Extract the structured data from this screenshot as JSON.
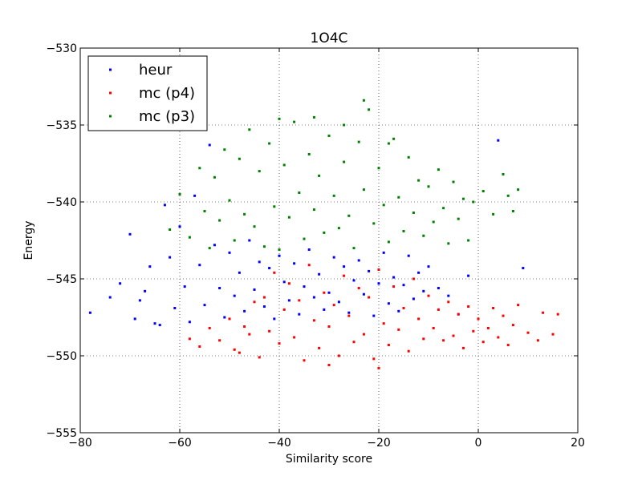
{
  "chart_data": {
    "type": "scatter",
    "title": "1O4C",
    "xlabel": "Similarity score",
    "ylabel": "Energy",
    "xlim": [
      -80,
      20
    ],
    "ylim": [
      -555,
      -530
    ],
    "xticks": [
      -80,
      -60,
      -40,
      -20,
      0,
      20
    ],
    "yticks": [
      -555,
      -550,
      -545,
      -540,
      -535,
      -530
    ],
    "xtick_labels": [
      "−80",
      "−60",
      "−40",
      "−20",
      "0",
      "20"
    ],
    "ytick_labels": [
      "−555",
      "−550",
      "−545",
      "−540",
      "−535",
      "−530"
    ],
    "grid": true,
    "legend_position": "top-left",
    "series": [
      {
        "name": "heur",
        "color": "#0000ff",
        "points": [
          [
            -78,
            -547.2
          ],
          [
            -72,
            -545.3
          ],
          [
            -70,
            -542.1
          ],
          [
            -68,
            -546.4
          ],
          [
            -66,
            -544.2
          ],
          [
            -64,
            -548.0
          ],
          [
            -63,
            -540.2
          ],
          [
            -62,
            -543.6
          ],
          [
            -61,
            -546.9
          ],
          [
            -60,
            -541.6
          ],
          [
            -59,
            -545.5
          ],
          [
            -58,
            -547.8
          ],
          [
            -57,
            -539.6
          ],
          [
            -56,
            -544.1
          ],
          [
            -55,
            -546.7
          ],
          [
            -54,
            -536.3
          ],
          [
            -53,
            -542.8
          ],
          [
            -52,
            -545.6
          ],
          [
            -51,
            -547.5
          ],
          [
            -50,
            -543.3
          ],
          [
            -49,
            -546.1
          ],
          [
            -48,
            -544.6
          ],
          [
            -47,
            -547.1
          ],
          [
            -46,
            -542.5
          ],
          [
            -45,
            -545.7
          ],
          [
            -44,
            -543.9
          ],
          [
            -43,
            -546.8
          ],
          [
            -42,
            -544.3
          ],
          [
            -41,
            -547.6
          ],
          [
            -40,
            -543.5
          ],
          [
            -39,
            -545.2
          ],
          [
            -38,
            -546.4
          ],
          [
            -37,
            -544.0
          ],
          [
            -36,
            -547.3
          ],
          [
            -35,
            -545.5
          ],
          [
            -34,
            -543.1
          ],
          [
            -33,
            -546.2
          ],
          [
            -32,
            -544.7
          ],
          [
            -31,
            -547.0
          ],
          [
            -30,
            -545.9
          ],
          [
            -29,
            -543.6
          ],
          [
            -28,
            -546.5
          ],
          [
            -27,
            -544.2
          ],
          [
            -26,
            -547.2
          ],
          [
            -25,
            -545.1
          ],
          [
            -24,
            -543.8
          ],
          [
            -23,
            -546.0
          ],
          [
            -22,
            -544.5
          ],
          [
            -21,
            -547.4
          ],
          [
            -20,
            -545.3
          ],
          [
            -19,
            -543.3
          ],
          [
            -18,
            -546.6
          ],
          [
            -17,
            -544.9
          ],
          [
            -16,
            -547.1
          ],
          [
            -15,
            -545.4
          ],
          [
            -14,
            -543.5
          ],
          [
            -13,
            -546.3
          ],
          [
            -12,
            -544.6
          ],
          [
            -11,
            -545.8
          ],
          [
            -10,
            -544.2
          ],
          [
            -8,
            -545.6
          ],
          [
            -6,
            -546.1
          ],
          [
            -4,
            -547.3
          ],
          [
            -2,
            -544.8
          ],
          [
            4,
            -536.0
          ],
          [
            9,
            -544.3
          ],
          [
            -65,
            -547.9
          ],
          [
            -67,
            -545.8
          ],
          [
            -69,
            -547.6
          ],
          [
            -74,
            -546.2
          ]
        ]
      },
      {
        "name": "mc (p4)",
        "color": "#ff0000",
        "points": [
          [
            -58,
            -548.9
          ],
          [
            -56,
            -549.4
          ],
          [
            -54,
            -548.2
          ],
          [
            -52,
            -549.0
          ],
          [
            -50,
            -547.6
          ],
          [
            -48,
            -549.8
          ],
          [
            -46,
            -548.6
          ],
          [
            -44,
            -550.1
          ],
          [
            -43,
            -546.2
          ],
          [
            -42,
            -548.4
          ],
          [
            -41,
            -544.6
          ],
          [
            -40,
            -549.2
          ],
          [
            -39,
            -547.0
          ],
          [
            -38,
            -545.3
          ],
          [
            -37,
            -548.8
          ],
          [
            -36,
            -546.4
          ],
          [
            -35,
            -550.3
          ],
          [
            -34,
            -544.1
          ],
          [
            -33,
            -547.7
          ],
          [
            -32,
            -549.5
          ],
          [
            -31,
            -545.9
          ],
          [
            -30,
            -548.1
          ],
          [
            -29,
            -546.7
          ],
          [
            -28,
            -550.0
          ],
          [
            -27,
            -544.8
          ],
          [
            -26,
            -547.4
          ],
          [
            -25,
            -549.1
          ],
          [
            -24,
            -545.6
          ],
          [
            -23,
            -548.6
          ],
          [
            -22,
            -546.2
          ],
          [
            -21,
            -550.2
          ],
          [
            -20,
            -544.4
          ],
          [
            -19,
            -547.9
          ],
          [
            -18,
            -549.3
          ],
          [
            -17,
            -545.5
          ],
          [
            -16,
            -548.3
          ],
          [
            -15,
            -546.9
          ],
          [
            -14,
            -549.7
          ],
          [
            -13,
            -545.0
          ],
          [
            -12,
            -547.6
          ],
          [
            -11,
            -548.9
          ],
          [
            -10,
            -546.1
          ],
          [
            -9,
            -548.2
          ],
          [
            -8,
            -547.0
          ],
          [
            -7,
            -549.0
          ],
          [
            -6,
            -546.5
          ],
          [
            -5,
            -548.7
          ],
          [
            -4,
            -547.3
          ],
          [
            -3,
            -549.5
          ],
          [
            -2,
            -546.8
          ],
          [
            -1,
            -548.4
          ],
          [
            0,
            -547.6
          ],
          [
            1,
            -549.1
          ],
          [
            2,
            -548.2
          ],
          [
            3,
            -546.9
          ],
          [
            4,
            -548.8
          ],
          [
            5,
            -547.4
          ],
          [
            6,
            -549.3
          ],
          [
            7,
            -548.0
          ],
          [
            8,
            -546.7
          ],
          [
            10,
            -548.5
          ],
          [
            12,
            -549.0
          ],
          [
            13,
            -547.2
          ],
          [
            15,
            -548.6
          ],
          [
            16,
            -547.3
          ],
          [
            -45,
            -546.5
          ],
          [
            -47,
            -548.1
          ],
          [
            -49,
            -549.6
          ],
          [
            -20,
            -550.8
          ],
          [
            -30,
            -550.6
          ]
        ]
      },
      {
        "name": "mc (p3)",
        "color": "#008000",
        "points": [
          [
            -62,
            -541.8
          ],
          [
            -60,
            -539.5
          ],
          [
            -58,
            -542.3
          ],
          [
            -56,
            -537.8
          ],
          [
            -55,
            -540.6
          ],
          [
            -54,
            -543.0
          ],
          [
            -53,
            -538.4
          ],
          [
            -52,
            -541.2
          ],
          [
            -51,
            -536.6
          ],
          [
            -50,
            -539.9
          ],
          [
            -49,
            -542.5
          ],
          [
            -48,
            -537.2
          ],
          [
            -47,
            -540.8
          ],
          [
            -46,
            -535.3
          ],
          [
            -45,
            -541.6
          ],
          [
            -44,
            -538.0
          ],
          [
            -43,
            -542.9
          ],
          [
            -42,
            -536.2
          ],
          [
            -41,
            -540.3
          ],
          [
            -40,
            -543.1
          ],
          [
            -39,
            -537.6
          ],
          [
            -38,
            -541.0
          ],
          [
            -37,
            -534.8
          ],
          [
            -36,
            -539.4
          ],
          [
            -35,
            -542.4
          ],
          [
            -34,
            -536.9
          ],
          [
            -33,
            -540.5
          ],
          [
            -32,
            -538.3
          ],
          [
            -31,
            -542.0
          ],
          [
            -30,
            -535.7
          ],
          [
            -29,
            -539.6
          ],
          [
            -28,
            -541.7
          ],
          [
            -27,
            -537.4
          ],
          [
            -26,
            -540.9
          ],
          [
            -25,
            -543.0
          ],
          [
            -24,
            -536.1
          ],
          [
            -23,
            -539.2
          ],
          [
            -22,
            -534.0
          ],
          [
            -21,
            -541.4
          ],
          [
            -20,
            -537.8
          ],
          [
            -19,
            -540.2
          ],
          [
            -18,
            -542.6
          ],
          [
            -17,
            -535.9
          ],
          [
            -16,
            -539.7
          ],
          [
            -15,
            -541.9
          ],
          [
            -14,
            -537.1
          ],
          [
            -13,
            -540.7
          ],
          [
            -12,
            -538.6
          ],
          [
            -11,
            -542.2
          ],
          [
            -10,
            -539.0
          ],
          [
            -9,
            -541.3
          ],
          [
            -8,
            -537.9
          ],
          [
            -7,
            -540.4
          ],
          [
            -6,
            -542.7
          ],
          [
            -5,
            -538.7
          ],
          [
            -4,
            -541.1
          ],
          [
            -3,
            -539.8
          ],
          [
            -2,
            -542.5
          ],
          [
            -1,
            -540.0
          ],
          [
            1,
            -539.3
          ],
          [
            3,
            -540.8
          ],
          [
            5,
            -538.2
          ],
          [
            6,
            -539.6
          ],
          [
            7,
            -540.6
          ],
          [
            8,
            -539.2
          ],
          [
            -23,
            -533.4
          ],
          [
            -27,
            -535.0
          ],
          [
            -33,
            -534.5
          ],
          [
            -18,
            -536.2
          ],
          [
            -40,
            -534.6
          ]
        ]
      }
    ]
  }
}
